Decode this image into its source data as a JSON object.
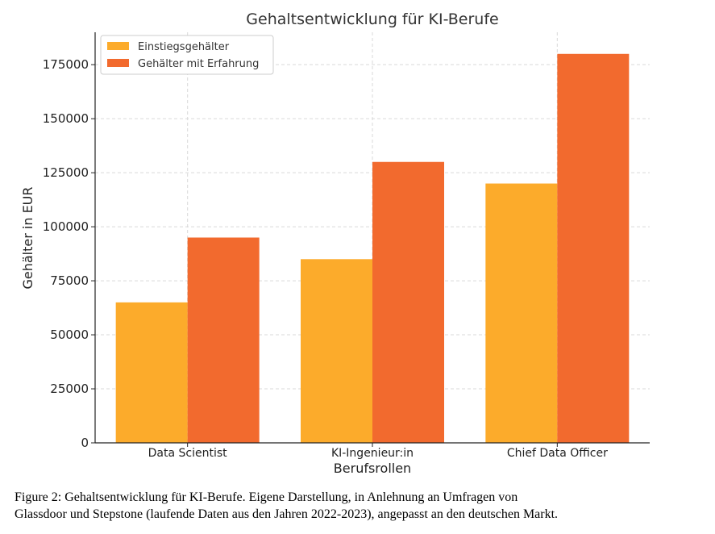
{
  "chart_data": {
    "type": "bar",
    "title": "Gehaltsentwicklung für KI-Berufe",
    "xlabel": "Berufsrollen",
    "ylabel": "Gehälter in EUR",
    "categories": [
      "Data Scientist",
      "KI-Ingenieur:in",
      "Chief Data Officer"
    ],
    "series": [
      {
        "name": "Einstiegsgehälter",
        "values": [
          65000,
          85000,
          120000
        ],
        "color": "#FCAB2B"
      },
      {
        "name": "Gehälter mit Erfahrung",
        "values": [
          95000,
          130000,
          180000
        ],
        "color": "#F26A2E"
      }
    ],
    "ylim": [
      0,
      190000
    ],
    "yticks": [
      0,
      25000,
      50000,
      75000,
      100000,
      125000,
      150000,
      175000
    ],
    "grid": true,
    "legend_position": "top-left"
  },
  "caption": {
    "line1": "Figure 2: Gehaltsentwicklung für KI-Berufe. Eigene Darstellung, in Anlehnung an Umfragen von",
    "line2": "Glassdoor und Stepstone (laufende Daten aus den Jahren 2022-2023), angepasst an den deutschen Markt."
  }
}
